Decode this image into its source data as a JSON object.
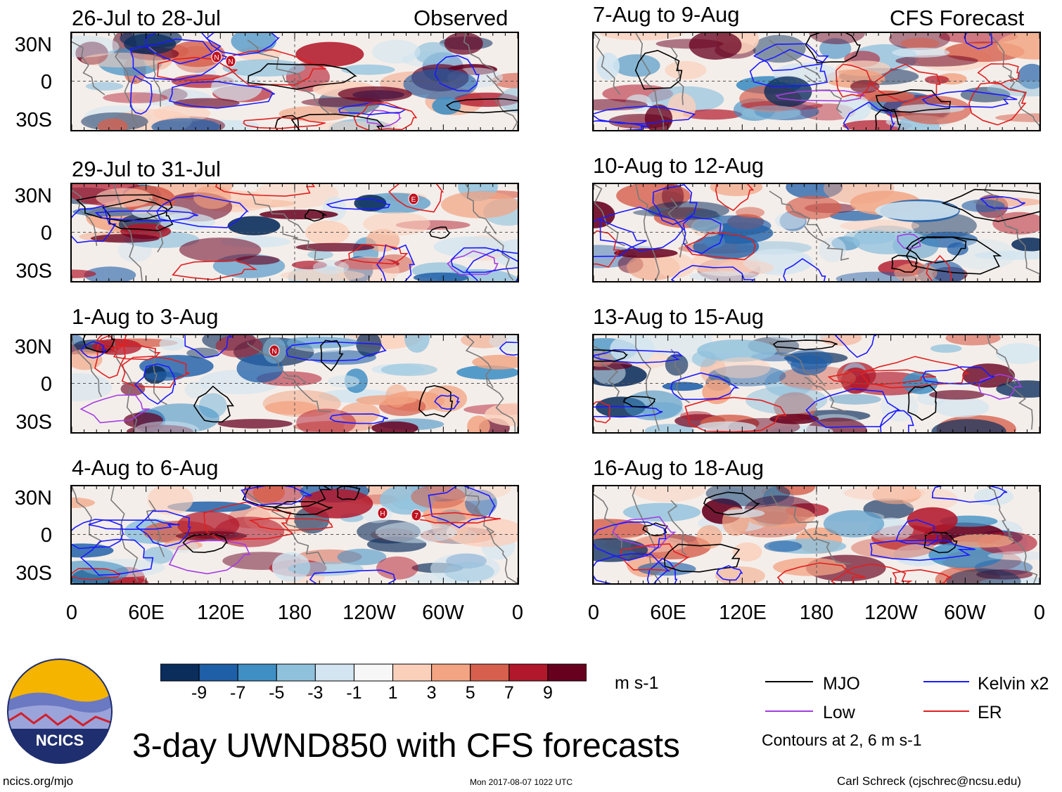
{
  "title": "3-day UWND850 with CFS forecasts",
  "left_header": "Observed",
  "right_header": "CFS Forecast",
  "panels_left": [
    {
      "period": "26-Jul to 28-Jul",
      "storms": [
        "N",
        "N"
      ]
    },
    {
      "period": "29-Jul to 31-Jul",
      "storms": [
        "E"
      ]
    },
    {
      "period": "1-Aug to 3-Aug",
      "storms": [
        "N"
      ]
    },
    {
      "period": "4-Aug to 6-Aug",
      "storms": [
        "H",
        "7"
      ]
    }
  ],
  "panels_right": [
    {
      "period": "7-Aug to 9-Aug"
    },
    {
      "period": "10-Aug to 12-Aug"
    },
    {
      "period": "13-Aug to 15-Aug"
    },
    {
      "period": "16-Aug to 18-Aug"
    }
  ],
  "chart_data": {
    "type": "heatmap",
    "variable": "850-hPa zonal wind anomaly",
    "units": "m s-1",
    "x_ticks": [
      "0",
      "60E",
      "120E",
      "180",
      "120W",
      "60W",
      "0"
    ],
    "y_ticks": [
      "30N",
      "0",
      "30S"
    ],
    "colorbar": {
      "labels": [
        "-9",
        "-7",
        "-5",
        "-3",
        "-1",
        "1",
        "3",
        "5",
        "7",
        "9"
      ],
      "colors": [
        "#0b2d5c",
        "#1f5fa8",
        "#3f8fc4",
        "#8fc1dd",
        "#d2e5f0",
        "#f7f7f7",
        "#fbd0bb",
        "#f2a483",
        "#d6604d",
        "#b2182b",
        "#67001f"
      ]
    },
    "contours": "Contours at 2, 6 m s-1",
    "legend": [
      {
        "name": "MJO",
        "color": "#000000"
      },
      {
        "name": "Kelvin x2",
        "color": "#1a1aff"
      },
      {
        "name": "Low",
        "color": "#a23ee0"
      },
      {
        "name": "ER",
        "color": "#e02020"
      }
    ]
  },
  "units_label": "m s-1",
  "logo_text": "NCICS",
  "footer": {
    "site": "ncics.org/mjo",
    "timestamp": "Mon 2017-08-07 1022 UTC",
    "credit": "Carl Schreck (cjschrec@ncsu.edu)"
  }
}
